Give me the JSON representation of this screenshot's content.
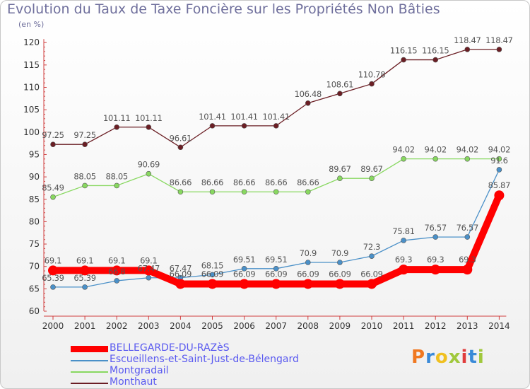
{
  "header": {
    "title": "Evolution du Taux de Taxe Foncière sur les Propriétés Non Bâties",
    "unit": "(en %)"
  },
  "logo": {
    "text": "Proxiti",
    "colors": [
      "#f07820",
      "#3a8ad8",
      "#f0c020",
      "#a0c83c",
      "#e03c3c",
      "#3a8ad8",
      "#a0c83c"
    ]
  },
  "chart_data": {
    "type": "line",
    "title": "Evolution du Taux de Taxe Foncière sur les Propriétés Non Bâties",
    "ylabel": "(en %)",
    "xlabel": "",
    "x": [
      "2000",
      "2001",
      "2002",
      "2003",
      "2004",
      "2005",
      "2006",
      "2007",
      "2008",
      "2009",
      "2010",
      "2011",
      "2012",
      "2013",
      "2014"
    ],
    "yticks": [
      60,
      65,
      70,
      75,
      80,
      85,
      90,
      95,
      100,
      105,
      110,
      115,
      120
    ],
    "ylim": [
      60,
      120
    ],
    "grid": false,
    "legend_position": "bottom-left",
    "series": [
      {
        "name": "BELLEGARDE-DU-RAZèS",
        "color": "#ff0000",
        "labels": [
          "69.1",
          "69.1",
          "69.1",
          "69.1",
          "66.09",
          "66.09",
          "66.09",
          "66.09",
          "66.09",
          "66.09",
          "66.09",
          "69.3",
          "69.3",
          "69.3",
          "85.87"
        ],
        "values": [
          69.1,
          69.1,
          69.1,
          69.1,
          66.09,
          66.09,
          66.09,
          66.09,
          66.09,
          66.09,
          66.09,
          69.3,
          69.3,
          69.3,
          85.87
        ]
      },
      {
        "name": "Escueillens-et-Saint-Just-de-Bélengard",
        "color": "#4a90c8",
        "labels": [
          "65.39",
          "65.39",
          "66.8",
          "67.47",
          "67.47",
          "68.15",
          "69.51",
          "69.51",
          "70.9",
          "70.9",
          "72.3",
          "75.81",
          "76.57",
          "76.57",
          "91.6"
        ],
        "values": [
          65.39,
          65.39,
          66.8,
          67.47,
          67.47,
          68.15,
          69.51,
          69.51,
          70.9,
          70.9,
          72.3,
          75.81,
          76.57,
          76.57,
          91.6
        ]
      },
      {
        "name": "Montgradail",
        "color": "#88d860",
        "labels": [
          "85.49",
          "88.05",
          "88.05",
          "90.69",
          "86.66",
          "86.66",
          "86.66",
          "86.66",
          "86.66",
          "89.67",
          "89.67",
          "94.02",
          "94.02",
          "94.02",
          "94.02"
        ],
        "values": [
          85.49,
          88.05,
          88.05,
          90.69,
          86.66,
          86.66,
          86.66,
          86.66,
          86.66,
          89.67,
          89.67,
          94.02,
          94.02,
          94.02,
          94.02
        ]
      },
      {
        "name": "Monthaut",
        "color": "#6b1e24",
        "labels": [
          "97.25",
          "97.25",
          "101.11",
          "101.11",
          "96.61",
          "101.41",
          "101.41",
          "101.41",
          "106.48",
          "108.61",
          "110.78",
          "116.15",
          "116.15",
          "118.47",
          "118.47"
        ],
        "values": [
          97.25,
          97.25,
          101.11,
          101.11,
          96.61,
          101.41,
          101.41,
          101.41,
          106.48,
          108.61,
          110.78,
          116.15,
          116.15,
          118.47,
          118.47
        ]
      }
    ]
  }
}
